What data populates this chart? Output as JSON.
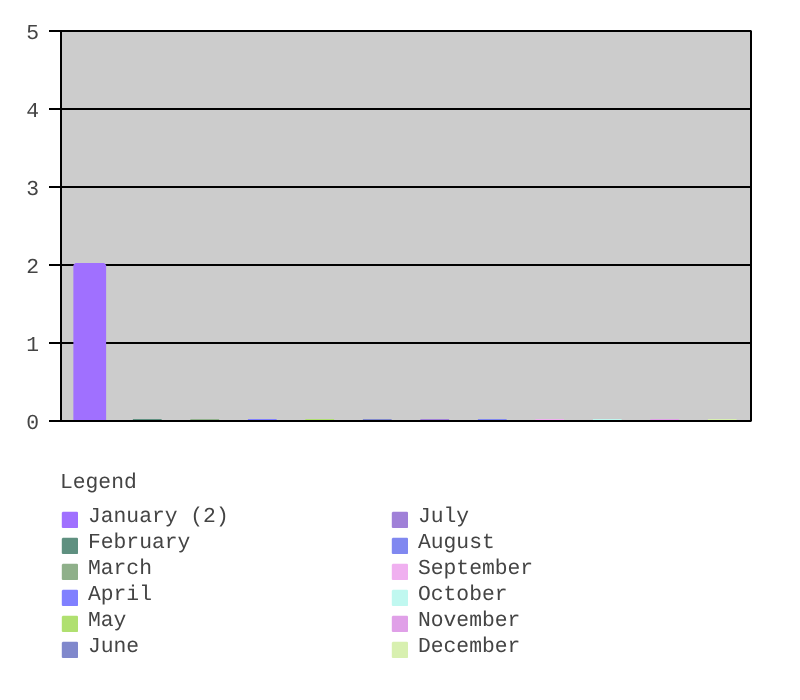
{
  "chart_data": {
    "type": "bar",
    "legend_title": "Legend",
    "categories": [
      null,
      null,
      null,
      null,
      null,
      null,
      null,
      null,
      null,
      null,
      null,
      null
    ],
    "series": [
      {
        "name": "January (2)",
        "color": "#a070ff",
        "values": [
          2,
          null,
          null,
          null,
          null,
          null,
          null,
          null,
          null,
          null,
          null,
          null
        ]
      },
      {
        "name": "February",
        "color": "#5f9080",
        "values": [
          null,
          0,
          null,
          null,
          null,
          null,
          null,
          null,
          null,
          null,
          null,
          null
        ]
      },
      {
        "name": "March",
        "color": "#8fb08a",
        "values": [
          null,
          null,
          0,
          null,
          null,
          null,
          null,
          null,
          null,
          null,
          null,
          null
        ]
      },
      {
        "name": "April",
        "color": "#8080ff",
        "values": [
          null,
          null,
          null,
          0,
          null,
          null,
          null,
          null,
          null,
          null,
          null,
          null
        ]
      },
      {
        "name": "May",
        "color": "#b0e070",
        "values": [
          null,
          null,
          null,
          null,
          0,
          null,
          null,
          null,
          null,
          null,
          null,
          null
        ]
      },
      {
        "name": "June",
        "color": "#8088cc",
        "values": [
          null,
          null,
          null,
          null,
          null,
          0,
          null,
          null,
          null,
          null,
          null,
          null
        ]
      },
      {
        "name": "July",
        "color": "#a080d8",
        "values": [
          null,
          null,
          null,
          null,
          null,
          null,
          0,
          null,
          null,
          null,
          null,
          null
        ]
      },
      {
        "name": "August",
        "color": "#8088f0",
        "values": [
          null,
          null,
          null,
          null,
          null,
          null,
          null,
          0,
          null,
          null,
          null,
          null
        ]
      },
      {
        "name": "September",
        "color": "#f0b0f0",
        "values": [
          null,
          null,
          null,
          null,
          null,
          null,
          null,
          null,
          0,
          null,
          null,
          null
        ]
      },
      {
        "name": "October",
        "color": "#c0f8f0",
        "values": [
          null,
          null,
          null,
          null,
          null,
          null,
          null,
          null,
          null,
          0,
          null,
          null
        ]
      },
      {
        "name": "November",
        "color": "#e0a0e8",
        "values": [
          null,
          null,
          null,
          null,
          null,
          null,
          null,
          null,
          null,
          null,
          0,
          null
        ]
      },
      {
        "name": "December",
        "color": "#d8f0b0",
        "values": [
          null,
          null,
          null,
          null,
          null,
          null,
          null,
          null,
          null,
          null,
          null,
          0
        ]
      }
    ],
    "ylim": [
      0,
      5
    ],
    "yticks": [
      0,
      1,
      2,
      3,
      4,
      5
    ],
    "grid": "y",
    "legend": "bottom",
    "tick_labels": "y"
  }
}
